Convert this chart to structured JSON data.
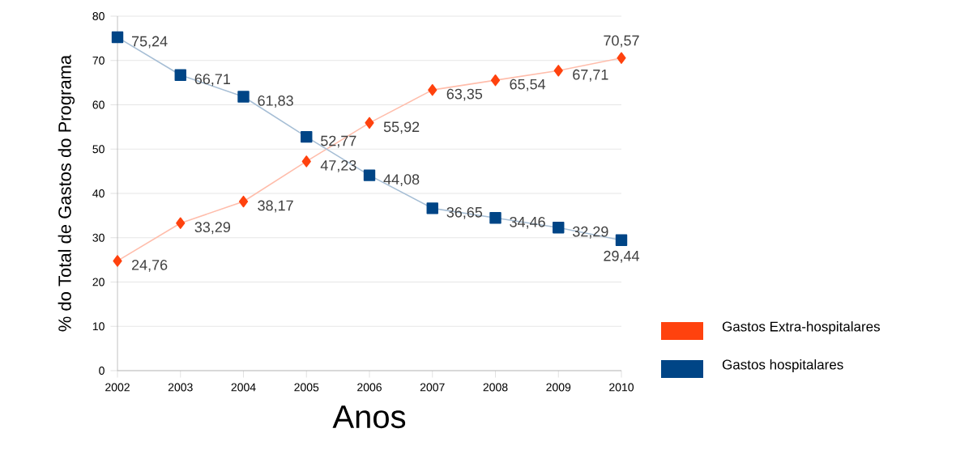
{
  "chart_data": {
    "type": "line",
    "xlabel": "Anos",
    "ylabel": "% do Total de Gastos do Programa",
    "x": [
      2002,
      2003,
      2004,
      2005,
      2006,
      2007,
      2008,
      2009,
      2010
    ],
    "xlim": [
      2002,
      2010
    ],
    "xticks": [
      2002,
      2003,
      2004,
      2005,
      2006,
      2007,
      2008,
      2009,
      2010
    ],
    "ylim": [
      0,
      80
    ],
    "yticks": [
      0,
      10,
      20,
      30,
      40,
      50,
      60,
      70,
      80
    ],
    "grid": "y",
    "legend": "right",
    "series": [
      {
        "name": "Gastos Extra-hospitalares",
        "color": "#ff420e",
        "marker": "diamond",
        "values": [
          24.76,
          33.29,
          38.17,
          47.23,
          55.92,
          63.35,
          65.54,
          67.71,
          70.57
        ],
        "value_labels": [
          "24,76",
          "33,29",
          "38,17",
          "47,23",
          "55,92",
          "63,35",
          "65,54",
          "67,71",
          "70,57"
        ]
      },
      {
        "name": "Gastos hospitalares",
        "color": "#004586",
        "marker": "square",
        "values": [
          75.24,
          66.71,
          61.83,
          52.77,
          44.08,
          36.65,
          34.46,
          32.29,
          29.44
        ],
        "value_labels": [
          "75,24",
          "66,71",
          "61,83",
          "52,77",
          "44,08",
          "36,65",
          "34,46",
          "32,29",
          "29,44"
        ]
      }
    ]
  }
}
